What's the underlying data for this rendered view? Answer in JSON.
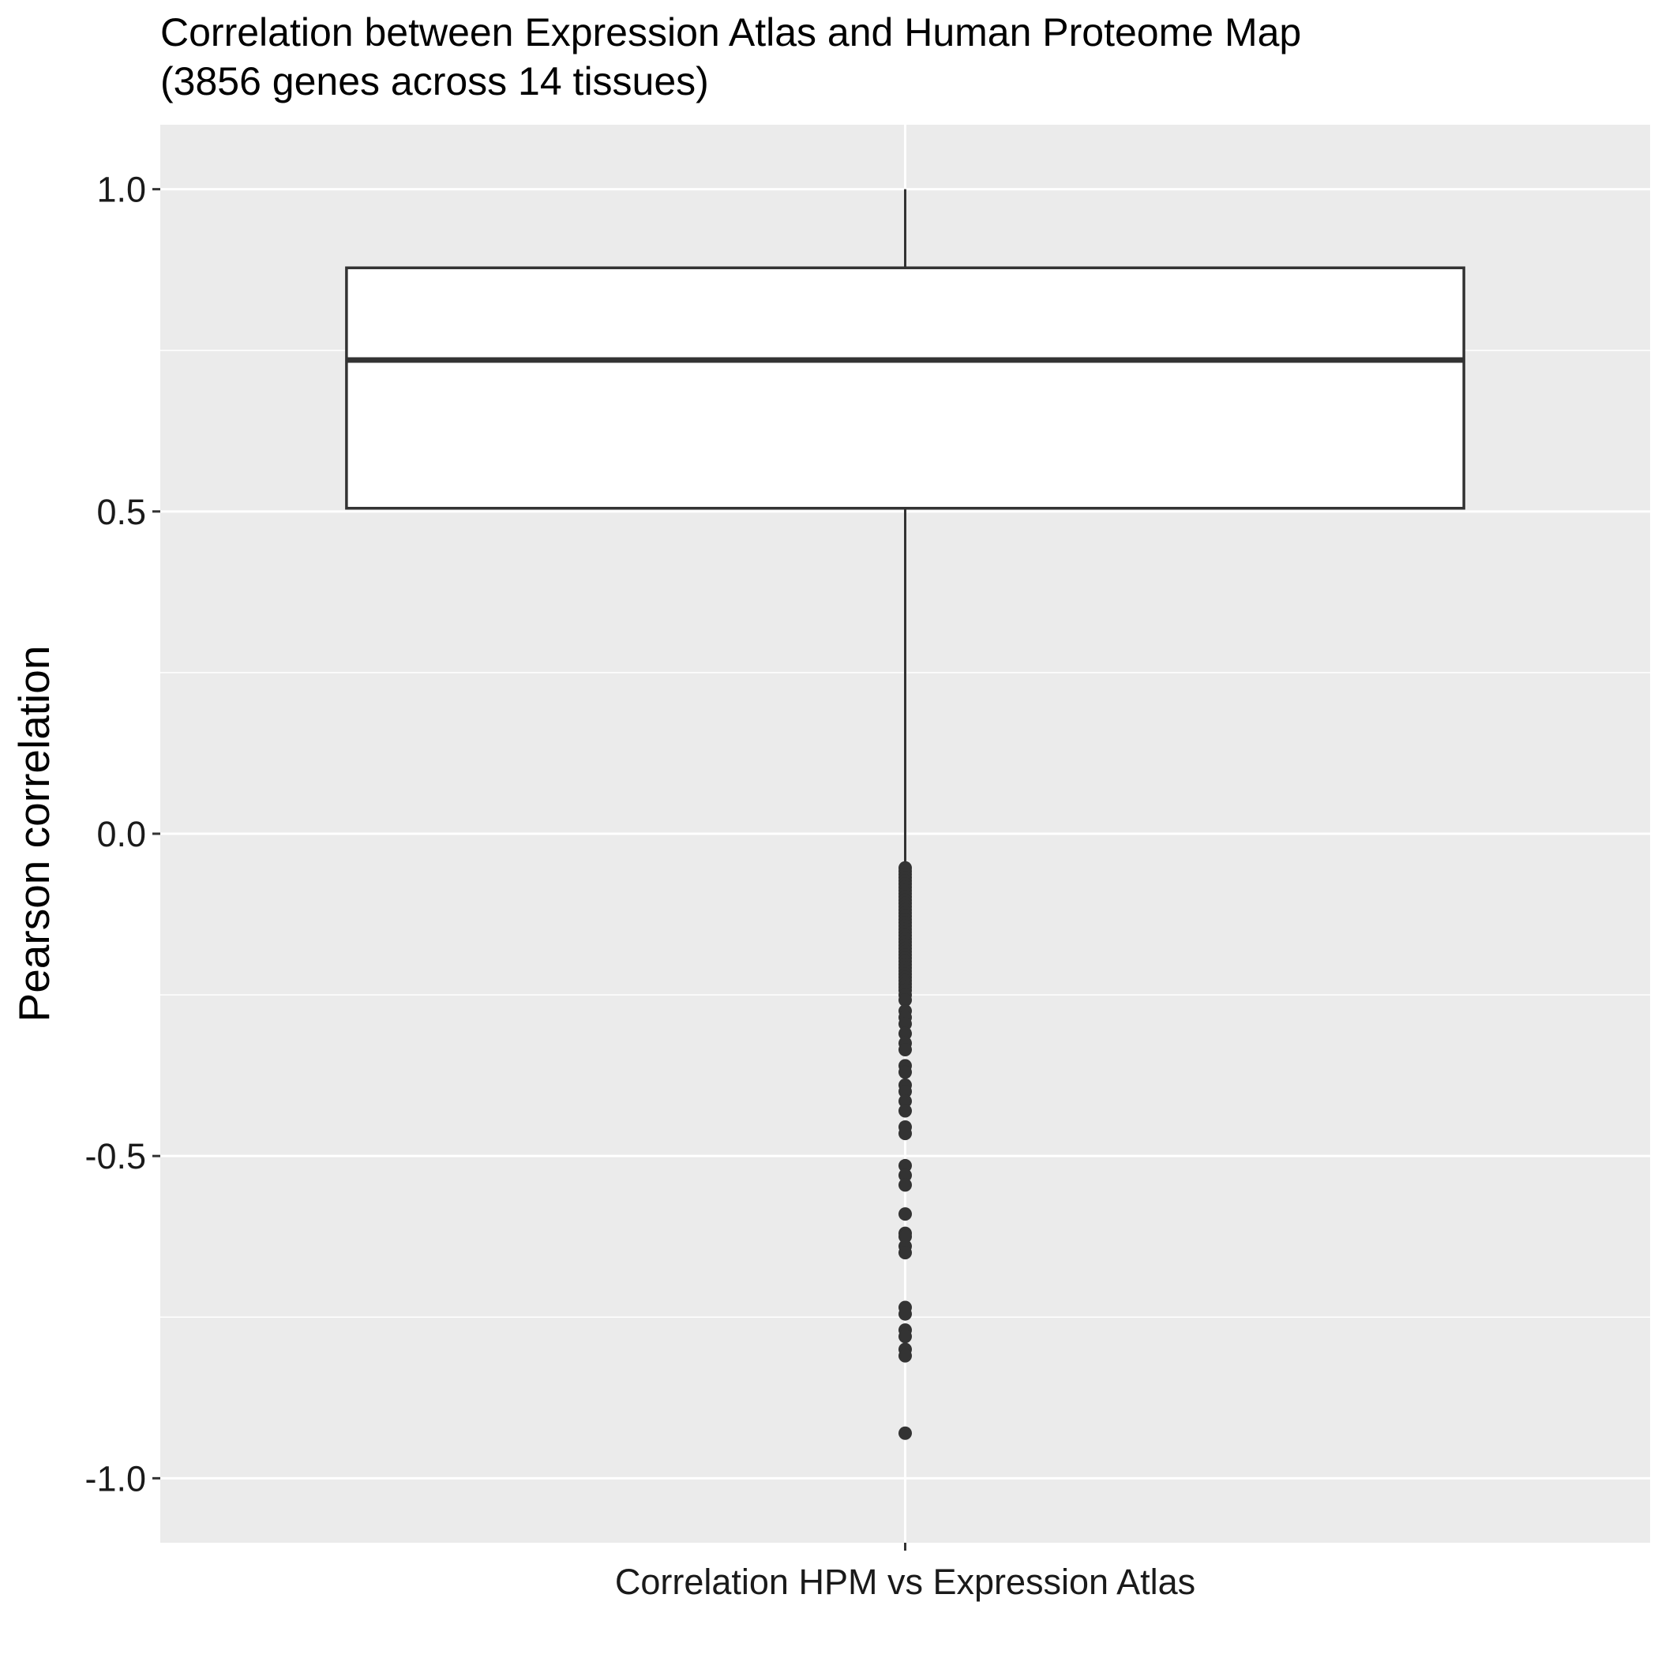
{
  "chart_data": {
    "type": "box",
    "title": "Correlation between Expression Atlas and Human Proteome Map",
    "subtitle": "(3856 genes across 14 tissues)",
    "xlabel": "",
    "ylabel": "Pearson correlation",
    "categories": [
      "Correlation HPM vs Expression Atlas"
    ],
    "ylim": [
      -1.1,
      1.1
    ],
    "yticks": [
      -1.0,
      -0.5,
      0.0,
      0.5,
      1.0
    ],
    "ytick_labels": [
      "-1.0",
      "-0.5",
      "0.0",
      "0.5",
      "1.0"
    ],
    "grid": true,
    "box": {
      "whisker_low": -0.05,
      "q1": 0.505,
      "median": 0.735,
      "q3": 0.878,
      "whisker_high": 1.0
    },
    "outliers": [
      -0.053,
      -0.058,
      -0.063,
      -0.068,
      -0.073,
      -0.078,
      -0.083,
      -0.088,
      -0.093,
      -0.098,
      -0.103,
      -0.108,
      -0.113,
      -0.118,
      -0.123,
      -0.128,
      -0.133,
      -0.138,
      -0.143,
      -0.148,
      -0.153,
      -0.158,
      -0.163,
      -0.168,
      -0.173,
      -0.178,
      -0.183,
      -0.188,
      -0.193,
      -0.198,
      -0.203,
      -0.208,
      -0.213,
      -0.218,
      -0.223,
      -0.228,
      -0.233,
      -0.238,
      -0.243,
      -0.25,
      -0.258,
      -0.275,
      -0.285,
      -0.295,
      -0.31,
      -0.325,
      -0.335,
      -0.36,
      -0.37,
      -0.39,
      -0.4,
      -0.415,
      -0.43,
      -0.455,
      -0.465,
      -0.515,
      -0.53,
      -0.545,
      -0.59,
      -0.62,
      -0.625,
      -0.64,
      -0.65,
      -0.735,
      -0.745,
      -0.77,
      -0.78,
      -0.8,
      -0.81,
      -0.93
    ],
    "colors": {
      "panel_background": "#ebebeb",
      "grid": "#ffffff",
      "box_fill": "#ffffff",
      "box_stroke": "#333333",
      "outlier": "#333333"
    }
  }
}
